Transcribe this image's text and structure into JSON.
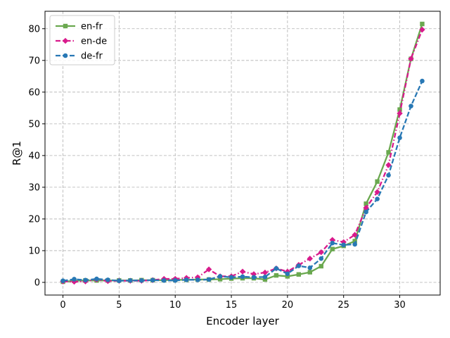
{
  "chart_data": {
    "type": "line",
    "xlabel": "Encoder layer",
    "ylabel": "R@1",
    "xlim": [
      -1.6,
      33.6
    ],
    "ylim": [
      -4,
      85.5
    ],
    "xticks": [
      0,
      5,
      10,
      15,
      20,
      25,
      30
    ],
    "yticks": [
      0,
      10,
      20,
      30,
      40,
      50,
      60,
      70,
      80
    ],
    "grid": true,
    "legend_position": "top-left",
    "x": [
      0,
      1,
      2,
      3,
      4,
      5,
      6,
      7,
      8,
      9,
      10,
      11,
      12,
      13,
      14,
      15,
      16,
      17,
      18,
      19,
      20,
      21,
      22,
      23,
      24,
      25,
      26,
      27,
      28,
      29,
      30,
      31,
      32
    ],
    "series": [
      {
        "name": "en-fr",
        "color": "#6aa84f",
        "marker": "square",
        "dash": "solid",
        "values": [
          0.2,
          0.5,
          0.6,
          0.6,
          0.6,
          0.6,
          0.6,
          0.7,
          0.7,
          0.7,
          0.8,
          0.8,
          0.9,
          0.9,
          1.0,
          1.2,
          1.3,
          1.3,
          0.9,
          2.2,
          1.9,
          2.5,
          3.2,
          5.1,
          10.5,
          11.5,
          13.0,
          24.8,
          31.8,
          41.0,
          54.5,
          70.5,
          81.5
        ]
      },
      {
        "name": "en-de",
        "color": "#d81b8c",
        "marker": "diamond",
        "dash": "dashdot",
        "values": [
          0.3,
          0.2,
          0.3,
          0.9,
          0.4,
          0.5,
          0.5,
          0.5,
          0.7,
          1.1,
          1.1,
          1.4,
          1.6,
          4.1,
          1.9,
          1.9,
          3.4,
          2.6,
          3.1,
          4.4,
          3.4,
          5.5,
          7.5,
          9.5,
          13.4,
          12.7,
          15.0,
          23.5,
          28.5,
          37.0,
          53.3,
          70.5,
          79.7
        ]
      },
      {
        "name": "de-fr",
        "color": "#2878b5",
        "marker": "circle",
        "dash": "dashed",
        "values": [
          0.5,
          1.0,
          0.7,
          1.1,
          0.8,
          0.5,
          0.6,
          0.6,
          0.7,
          0.6,
          0.6,
          0.8,
          0.8,
          0.9,
          1.9,
          1.6,
          1.8,
          1.6,
          1.7,
          4.4,
          2.7,
          5.2,
          4.6,
          7.5,
          12.4,
          11.8,
          12.0,
          22.2,
          26.3,
          33.8,
          45.6,
          55.6,
          63.5
        ]
      }
    ]
  }
}
